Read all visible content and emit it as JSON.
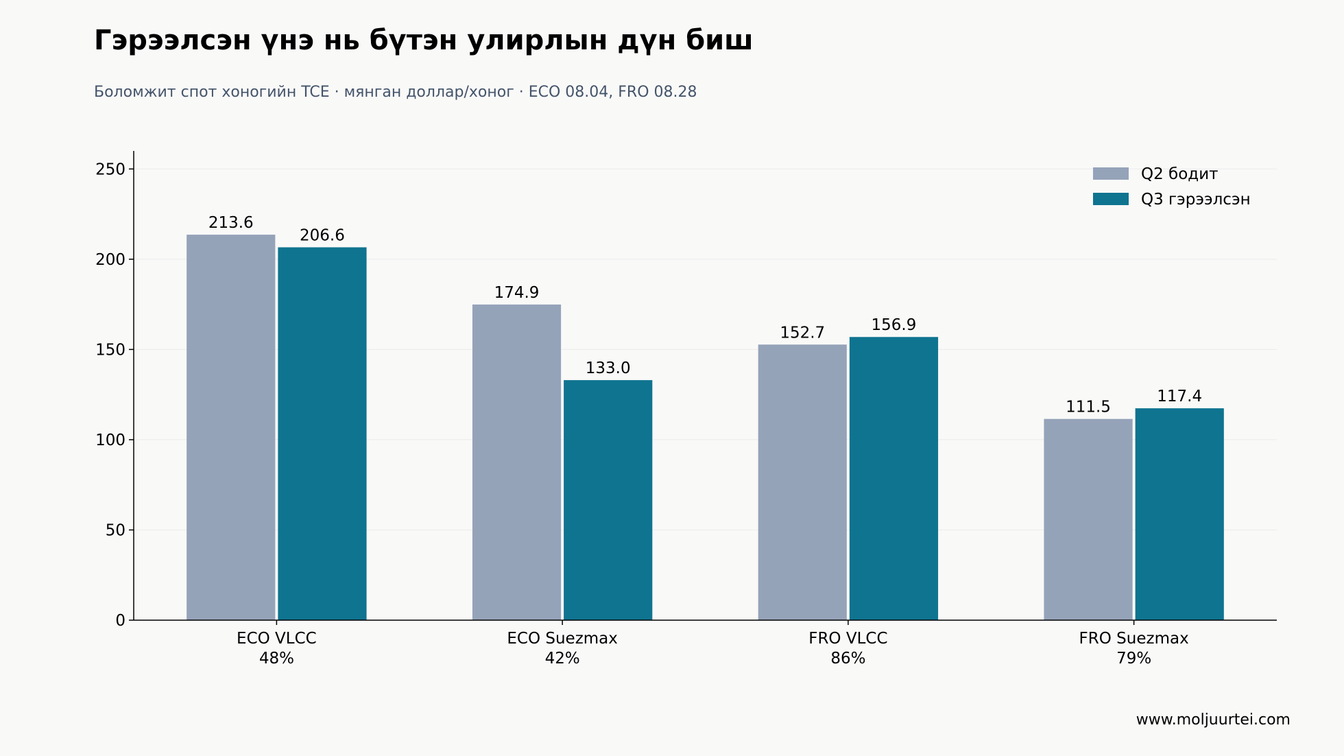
{
  "header": {
    "title": "Гэрээлсэн үнэ нь бүтэн улирлын дүн биш",
    "subtitle": "Боломжит спот хоногийн TCE · мянган доллар/хоног · ECO 08.04, FRO 08.28"
  },
  "footer": {
    "source": "www.moljuurtei.com"
  },
  "chart_data": {
    "type": "bar",
    "categories": [
      [
        "ECO VLCC",
        "48%"
      ],
      [
        "ECO Suezmax",
        "42%"
      ],
      [
        "FRO VLCC",
        "86%"
      ],
      [
        "FRO Suezmax",
        "79%"
      ]
    ],
    "series": [
      {
        "name": "Q2 бодит",
        "values": [
          213.6,
          174.9,
          152.7,
          111.5
        ],
        "labels": [
          "213.6",
          "174.9",
          "152.7",
          "111.5"
        ],
        "color": "#95a3b9"
      },
      {
        "name": "Q3 гэрээлсэн",
        "values": [
          206.6,
          133.0,
          156.9,
          117.4
        ],
        "labels": [
          "206.6",
          "133.0",
          "156.9",
          "117.4"
        ],
        "color": "#0f7490"
      }
    ],
    "ylim": [
      0,
      260
    ],
    "yticks": [
      0,
      50,
      100,
      150,
      200,
      250
    ],
    "grid": true,
    "legend": "top-right"
  }
}
